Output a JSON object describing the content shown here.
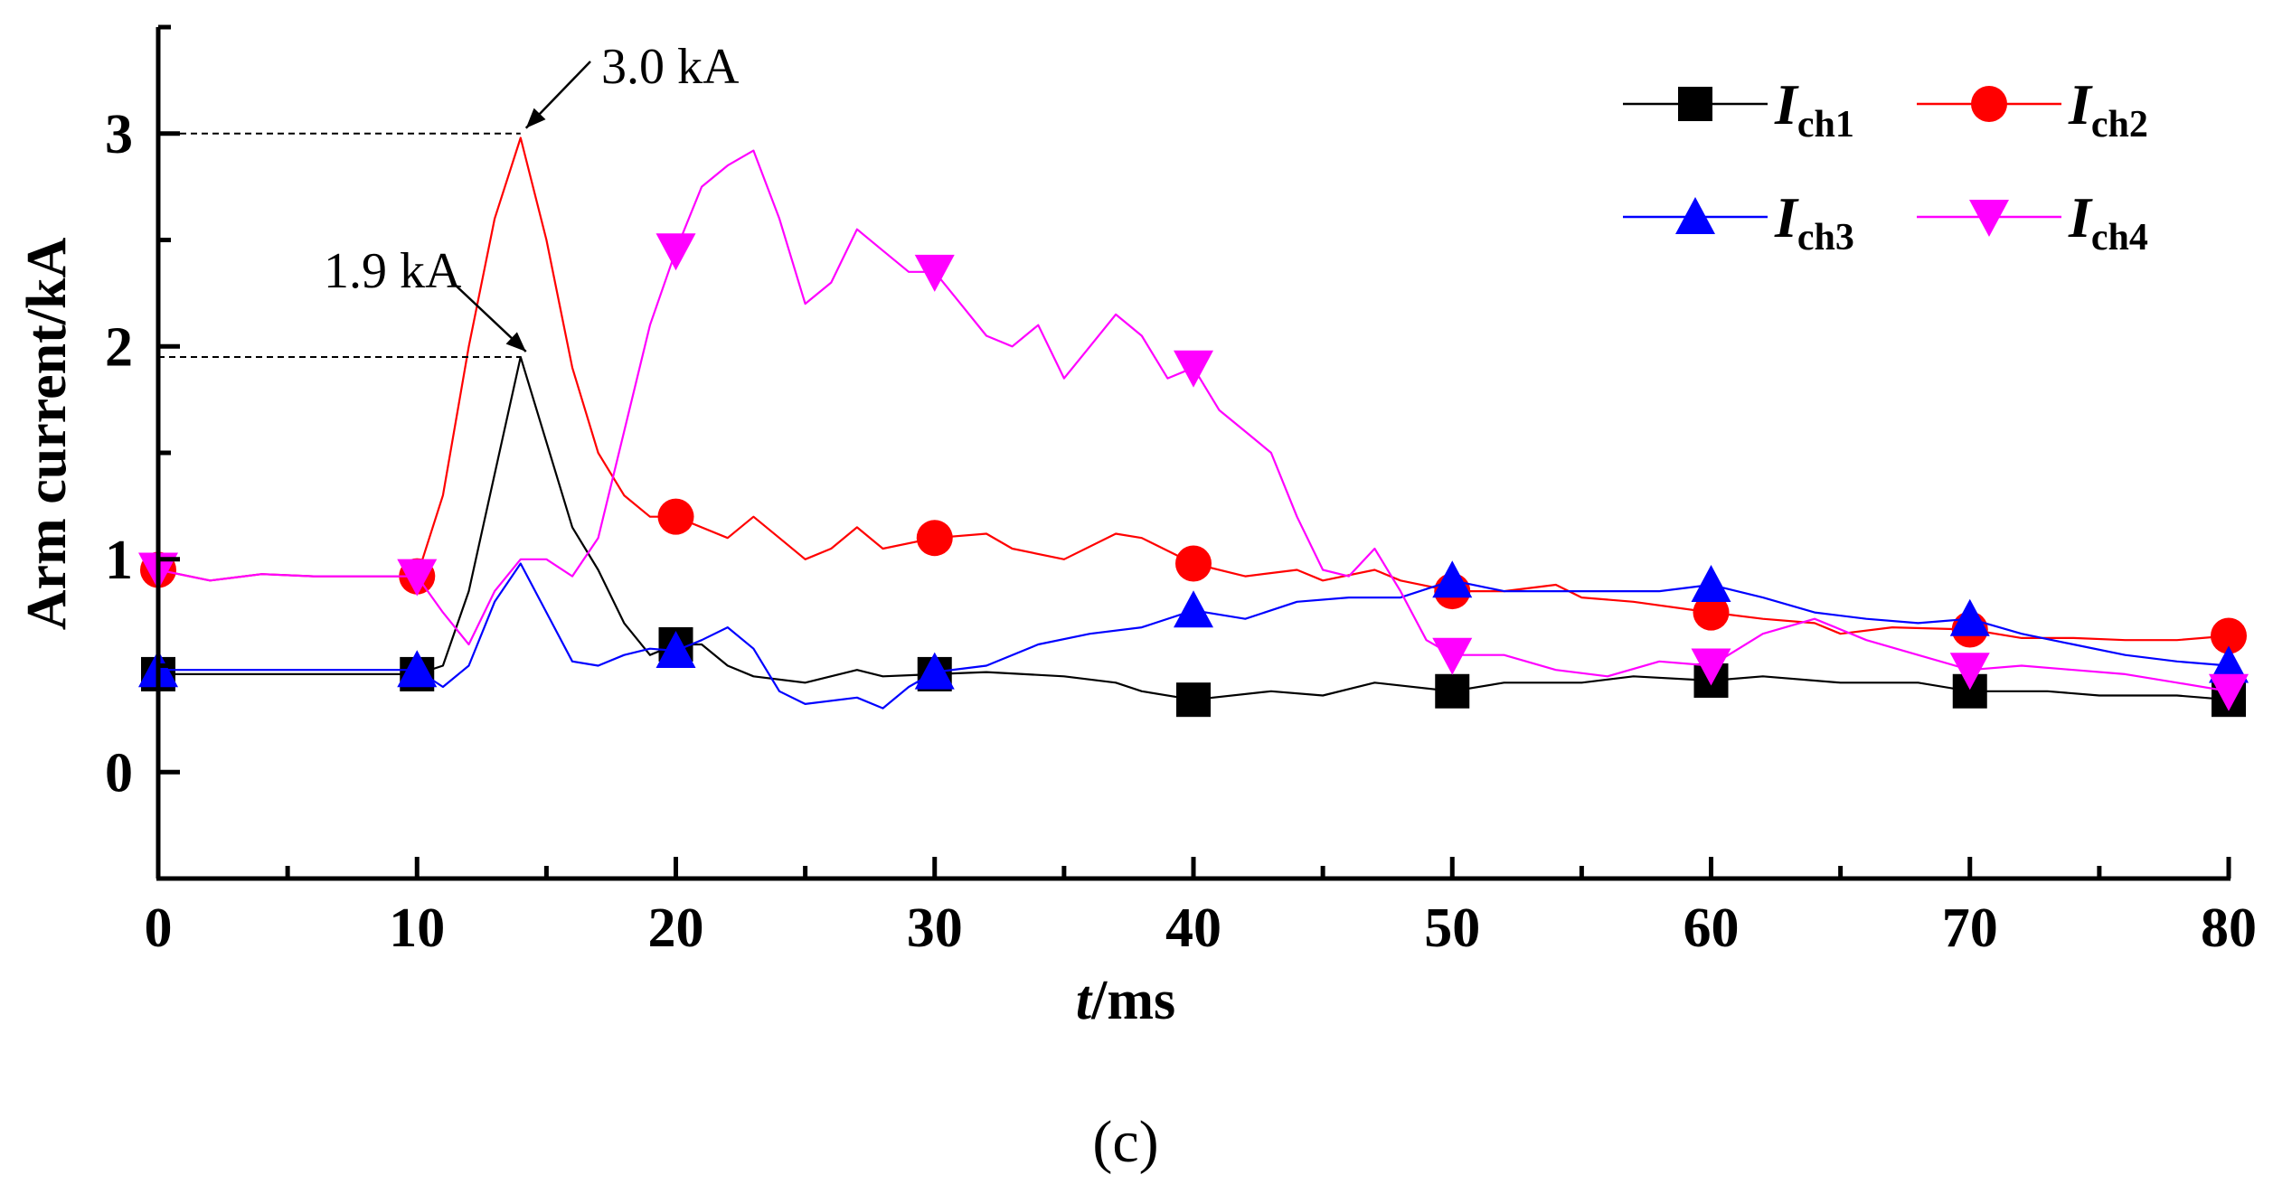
{
  "chart_data": {
    "type": "line",
    "xlabel": "t/ms",
    "xlabel_italic_part": "t",
    "xlabel_rest": "/ms",
    "ylabel": "Arm current/kA",
    "xlim": [
      0,
      80
    ],
    "ylim": [
      -0.5,
      3.5
    ],
    "xticks": [
      0,
      10,
      20,
      30,
      40,
      50,
      60,
      70,
      80
    ],
    "xtick_labels": [
      "0",
      "10",
      "20",
      "30",
      "40",
      "50",
      "60",
      "70",
      "80"
    ],
    "yticks": [
      0,
      1,
      2,
      3
    ],
    "ytick_labels": [
      "0",
      "1",
      "2",
      "3"
    ],
    "caption": "(c)",
    "legend_position": "top-right",
    "annotations": [
      {
        "text": "3.0 kA",
        "x": 14,
        "y": 3.0
      },
      {
        "text": "1.9 kA",
        "x": 14,
        "y": 1.95
      }
    ],
    "series": [
      {
        "name": "Ich1",
        "label_main": "I",
        "label_sub": "ch1",
        "color": "#000000",
        "marker": "square",
        "points": [
          [
            0,
            0.46
          ],
          [
            5,
            0.46
          ],
          [
            10,
            0.46
          ],
          [
            11,
            0.5
          ],
          [
            12,
            0.85
          ],
          [
            13,
            1.4
          ],
          [
            14,
            1.95
          ],
          [
            15,
            1.55
          ],
          [
            16,
            1.15
          ],
          [
            17,
            0.95
          ],
          [
            18,
            0.7
          ],
          [
            19,
            0.55
          ],
          [
            20,
            0.6
          ],
          [
            21,
            0.6
          ],
          [
            22,
            0.5
          ],
          [
            23,
            0.45
          ],
          [
            25,
            0.42
          ],
          [
            27,
            0.48
          ],
          [
            28,
            0.45
          ],
          [
            30,
            0.46
          ],
          [
            32,
            0.47
          ],
          [
            35,
            0.45
          ],
          [
            37,
            0.42
          ],
          [
            38,
            0.38
          ],
          [
            40,
            0.34
          ],
          [
            43,
            0.38
          ],
          [
            45,
            0.36
          ],
          [
            47,
            0.42
          ],
          [
            50,
            0.38
          ],
          [
            52,
            0.42
          ],
          [
            55,
            0.42
          ],
          [
            57,
            0.45
          ],
          [
            60,
            0.43
          ],
          [
            62,
            0.45
          ],
          [
            65,
            0.42
          ],
          [
            68,
            0.42
          ],
          [
            70,
            0.38
          ],
          [
            73,
            0.38
          ],
          [
            75,
            0.36
          ],
          [
            78,
            0.36
          ],
          [
            80,
            0.34
          ]
        ],
        "marker_x": [
          0,
          10,
          20,
          30,
          40,
          50,
          60,
          70,
          80
        ]
      },
      {
        "name": "Ich2",
        "label_main": "I",
        "label_sub": "ch2",
        "color": "#ff0000",
        "marker": "circle",
        "points": [
          [
            0,
            0.95
          ],
          [
            2,
            0.9
          ],
          [
            4,
            0.93
          ],
          [
            6,
            0.92
          ],
          [
            8,
            0.92
          ],
          [
            10,
            0.92
          ],
          [
            11,
            1.3
          ],
          [
            12,
            2.0
          ],
          [
            13,
            2.6
          ],
          [
            14,
            2.98
          ],
          [
            15,
            2.5
          ],
          [
            16,
            1.9
          ],
          [
            17,
            1.5
          ],
          [
            18,
            1.3
          ],
          [
            19,
            1.2
          ],
          [
            20,
            1.2
          ],
          [
            22,
            1.1
          ],
          [
            23,
            1.2
          ],
          [
            24,
            1.1
          ],
          [
            25,
            1.0
          ],
          [
            26,
            1.05
          ],
          [
            27,
            1.15
          ],
          [
            28,
            1.05
          ],
          [
            30,
            1.1
          ],
          [
            32,
            1.12
          ],
          [
            33,
            1.05
          ],
          [
            35,
            1.0
          ],
          [
            37,
            1.12
          ],
          [
            38,
            1.1
          ],
          [
            40,
            0.98
          ],
          [
            42,
            0.92
          ],
          [
            44,
            0.95
          ],
          [
            45,
            0.9
          ],
          [
            47,
            0.95
          ],
          [
            48,
            0.9
          ],
          [
            50,
            0.85
          ],
          [
            52,
            0.85
          ],
          [
            54,
            0.88
          ],
          [
            55,
            0.82
          ],
          [
            57,
            0.8
          ],
          [
            60,
            0.75
          ],
          [
            62,
            0.72
          ],
          [
            64,
            0.7
          ],
          [
            65,
            0.65
          ],
          [
            67,
            0.68
          ],
          [
            70,
            0.67
          ],
          [
            72,
            0.63
          ],
          [
            74,
            0.63
          ],
          [
            76,
            0.62
          ],
          [
            78,
            0.62
          ],
          [
            80,
            0.64
          ]
        ],
        "marker_x": [
          0,
          10,
          20,
          30,
          40,
          50,
          60,
          70,
          80
        ]
      },
      {
        "name": "Ich3",
        "label_main": "I",
        "label_sub": "ch3",
        "color": "#0000ff",
        "marker": "triangle-up",
        "points": [
          [
            0,
            0.48
          ],
          [
            5,
            0.48
          ],
          [
            10,
            0.48
          ],
          [
            11,
            0.4
          ],
          [
            12,
            0.5
          ],
          [
            13,
            0.8
          ],
          [
            14,
            0.98
          ],
          [
            15,
            0.75
          ],
          [
            16,
            0.52
          ],
          [
            17,
            0.5
          ],
          [
            18,
            0.55
          ],
          [
            19,
            0.58
          ],
          [
            20,
            0.57
          ],
          [
            21,
            0.62
          ],
          [
            22,
            0.68
          ],
          [
            23,
            0.58
          ],
          [
            24,
            0.38
          ],
          [
            25,
            0.32
          ],
          [
            27,
            0.35
          ],
          [
            28,
            0.3
          ],
          [
            29,
            0.4
          ],
          [
            30,
            0.47
          ],
          [
            32,
            0.5
          ],
          [
            34,
            0.6
          ],
          [
            36,
            0.65
          ],
          [
            38,
            0.68
          ],
          [
            40,
            0.76
          ],
          [
            42,
            0.72
          ],
          [
            44,
            0.8
          ],
          [
            46,
            0.82
          ],
          [
            48,
            0.82
          ],
          [
            50,
            0.9
          ],
          [
            52,
            0.85
          ],
          [
            54,
            0.85
          ],
          [
            56,
            0.85
          ],
          [
            58,
            0.85
          ],
          [
            60,
            0.88
          ],
          [
            62,
            0.82
          ],
          [
            64,
            0.75
          ],
          [
            66,
            0.72
          ],
          [
            68,
            0.7
          ],
          [
            70,
            0.72
          ],
          [
            72,
            0.65
          ],
          [
            74,
            0.6
          ],
          [
            76,
            0.55
          ],
          [
            78,
            0.52
          ],
          [
            80,
            0.5
          ]
        ],
        "marker_x": [
          0,
          10,
          20,
          30,
          40,
          50,
          60,
          70,
          80
        ]
      },
      {
        "name": "Ich4",
        "label_main": "I",
        "label_sub": "ch4",
        "color": "#ff00ff",
        "marker": "triangle-down",
        "points": [
          [
            0,
            0.95
          ],
          [
            2,
            0.9
          ],
          [
            4,
            0.93
          ],
          [
            6,
            0.92
          ],
          [
            8,
            0.92
          ],
          [
            10,
            0.92
          ],
          [
            11,
            0.75
          ],
          [
            12,
            0.6
          ],
          [
            13,
            0.85
          ],
          [
            14,
            1.0
          ],
          [
            15,
            1.0
          ],
          [
            16,
            0.92
          ],
          [
            17,
            1.1
          ],
          [
            18,
            1.6
          ],
          [
            19,
            2.1
          ],
          [
            20,
            2.45
          ],
          [
            21,
            2.75
          ],
          [
            22,
            2.85
          ],
          [
            23,
            2.92
          ],
          [
            24,
            2.6
          ],
          [
            25,
            2.2
          ],
          [
            26,
            2.3
          ],
          [
            27,
            2.55
          ],
          [
            28,
            2.45
          ],
          [
            29,
            2.35
          ],
          [
            30,
            2.35
          ],
          [
            31,
            2.2
          ],
          [
            32,
            2.05
          ],
          [
            33,
            2.0
          ],
          [
            34,
            2.1
          ],
          [
            35,
            1.85
          ],
          [
            36,
            2.0
          ],
          [
            37,
            2.15
          ],
          [
            38,
            2.05
          ],
          [
            39,
            1.85
          ],
          [
            40,
            1.9
          ],
          [
            41,
            1.7
          ],
          [
            42,
            1.6
          ],
          [
            43,
            1.5
          ],
          [
            44,
            1.2
          ],
          [
            45,
            0.95
          ],
          [
            46,
            0.92
          ],
          [
            47,
            1.05
          ],
          [
            48,
            0.85
          ],
          [
            49,
            0.62
          ],
          [
            50,
            0.55
          ],
          [
            52,
            0.55
          ],
          [
            54,
            0.48
          ],
          [
            56,
            0.45
          ],
          [
            58,
            0.52
          ],
          [
            60,
            0.5
          ],
          [
            62,
            0.65
          ],
          [
            64,
            0.72
          ],
          [
            66,
            0.62
          ],
          [
            68,
            0.55
          ],
          [
            70,
            0.48
          ],
          [
            72,
            0.5
          ],
          [
            74,
            0.48
          ],
          [
            76,
            0.46
          ],
          [
            78,
            0.42
          ],
          [
            80,
            0.38
          ]
        ],
        "marker_x": [
          0,
          10,
          20,
          30,
          40,
          50,
          60,
          70,
          80
        ]
      }
    ]
  }
}
